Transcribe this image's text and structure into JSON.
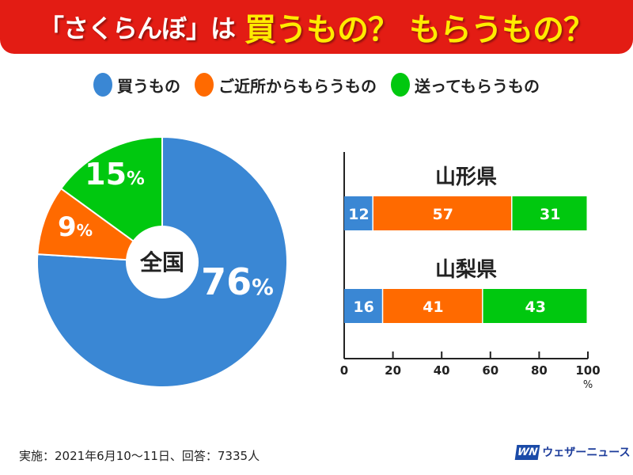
{
  "title": {
    "part1": "「さくらんぼ」は",
    "part2": "買うもの？ もらうもの？"
  },
  "legend": [
    {
      "label": "買うもの",
      "color": "#3a87d4"
    },
    {
      "label": "ご近所からもらうもの",
      "color": "#ff6a00"
    },
    {
      "label": "送ってもらうもの",
      "color": "#00c80f"
    }
  ],
  "chart_data": [
    {
      "type": "pie",
      "center_label": "全国",
      "values": [
        76,
        9,
        15
      ],
      "labels": [
        "76%",
        "9%",
        "15%"
      ],
      "colors": [
        "#3a87d4",
        "#ff6a00",
        "#00c80f"
      ]
    },
    {
      "type": "bar",
      "stacked": true,
      "orientation": "horizontal",
      "categories": [
        "山形県",
        "山梨県"
      ],
      "series": [
        {
          "name": "買うもの",
          "values": [
            12,
            16
          ]
        },
        {
          "name": "ご近所からもらうもの",
          "values": [
            57,
            41
          ]
        },
        {
          "name": "送ってもらうもの",
          "values": [
            31,
            43
          ]
        }
      ],
      "xlim": [
        0,
        100
      ],
      "xticks": [
        "0",
        "20",
        "40",
        "60",
        "80",
        "100"
      ],
      "xunit": "%"
    }
  ],
  "footer": "実施：2021年6月10〜11日、回答：7335人",
  "logo": {
    "mark": "WN",
    "text": "ウェザーニュース"
  }
}
